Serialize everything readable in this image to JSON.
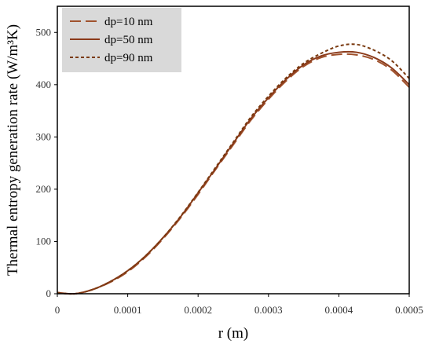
{
  "chart_data": {
    "type": "line",
    "xlabel": "r (m)",
    "ylabel": "Thermal entropy generation rate (W/m³K)",
    "xlim": [
      0,
      0.0005
    ],
    "ylim": [
      0,
      550
    ],
    "x_ticks": [
      0,
      0.0001,
      0.0002,
      0.0003,
      0.0004,
      0.0005
    ],
    "x_tick_labels": [
      "0",
      "0.0001",
      "0.0002",
      "0.0003",
      "0.0004",
      "0.0005"
    ],
    "y_ticks": [
      0,
      100,
      200,
      300,
      400,
      500
    ],
    "y_tick_labels": [
      "0",
      "100",
      "200",
      "300",
      "400",
      "500"
    ],
    "grid": false,
    "legend_position": "top-left",
    "x": [
      0,
      2.5e-05,
      5e-05,
      7.5e-05,
      0.0001,
      0.000125,
      0.00015,
      0.000175,
      0.0002,
      0.000225,
      0.00025,
      0.000275,
      0.0003,
      0.000325,
      0.00035,
      0.000375,
      0.0004,
      0.000425,
      0.00045,
      0.000475,
      0.0005
    ],
    "series": [
      {
        "name": "dp=10 nm",
        "line_style": "dashed",
        "color": "#A0522D",
        "values": [
          2,
          0,
          8,
          22,
          42,
          70,
          105,
          145,
          190,
          238,
          285,
          332,
          372,
          407,
          435,
          452,
          458,
          457,
          448,
          428,
          395
        ]
      },
      {
        "name": "dp=50 nm",
        "line_style": "solid",
        "color": "#8B3A1A",
        "values": [
          2,
          0,
          8,
          23,
          44,
          72,
          107,
          147,
          193,
          240,
          288,
          335,
          375,
          410,
          438,
          455,
          462,
          462,
          452,
          432,
          400
        ]
      },
      {
        "name": "dp=90 nm",
        "line_style": "dotted",
        "color": "#7A3A10",
        "values": [
          2,
          0,
          8,
          23,
          44,
          72,
          107,
          148,
          194,
          242,
          290,
          338,
          378,
          413,
          441,
          460,
          474,
          477,
          466,
          446,
          412
        ]
      }
    ]
  },
  "colors": {
    "legend_background": "#D9D9D9",
    "axis": "#000000"
  }
}
